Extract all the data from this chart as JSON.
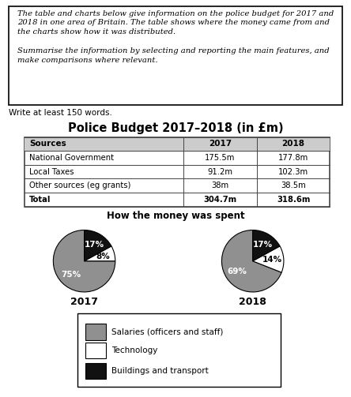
{
  "write_text": "Write at least 150 words.",
  "table_title": "Police Budget 2017–2018 (in £m)",
  "table_headers": [
    "Sources",
    "2017",
    "2018"
  ],
  "table_rows": [
    [
      "National Government",
      "175.5m",
      "177.8m"
    ],
    [
      "Local Taxes",
      "91.2m",
      "102.3m"
    ],
    [
      "Other sources (eg grants)",
      "38m",
      "38.5m"
    ],
    [
      "Total",
      "304.7m",
      "318.6m"
    ]
  ],
  "pie_title": "How the money was spent",
  "pie_2017": {
    "label": "2017",
    "slices": [
      75,
      8,
      17
    ],
    "labels": [
      "75%",
      "8%",
      "17%"
    ],
    "colors": [
      "#909090",
      "#ffffff",
      "#111111"
    ],
    "startangle": 90
  },
  "pie_2018": {
    "label": "2018",
    "slices": [
      69,
      14,
      17
    ],
    "labels": [
      "69%",
      "14%",
      "17%"
    ],
    "colors": [
      "#909090",
      "#ffffff",
      "#111111"
    ],
    "startangle": 90
  },
  "legend_labels": [
    "Salaries (officers and staff)",
    "Technology",
    "Buildings and transport"
  ],
  "legend_colors": [
    "#909090",
    "#ffffff",
    "#111111"
  ],
  "bg_color": "#ffffff",
  "table_header_bg": "#cccccc",
  "table_border_color": "#444444",
  "box_text_line1": "The table and charts below give information on the police budget for 2017 and",
  "box_text_line2": "2018 in one area of Britain. The table shows where the money came from and",
  "box_text_line3": "the charts show how it was distributed.",
  "box_text_line4": "",
  "box_text_line5": "Summarise the information by selecting and reporting the main features, and",
  "box_text_line6": "make comparisons where relevant."
}
